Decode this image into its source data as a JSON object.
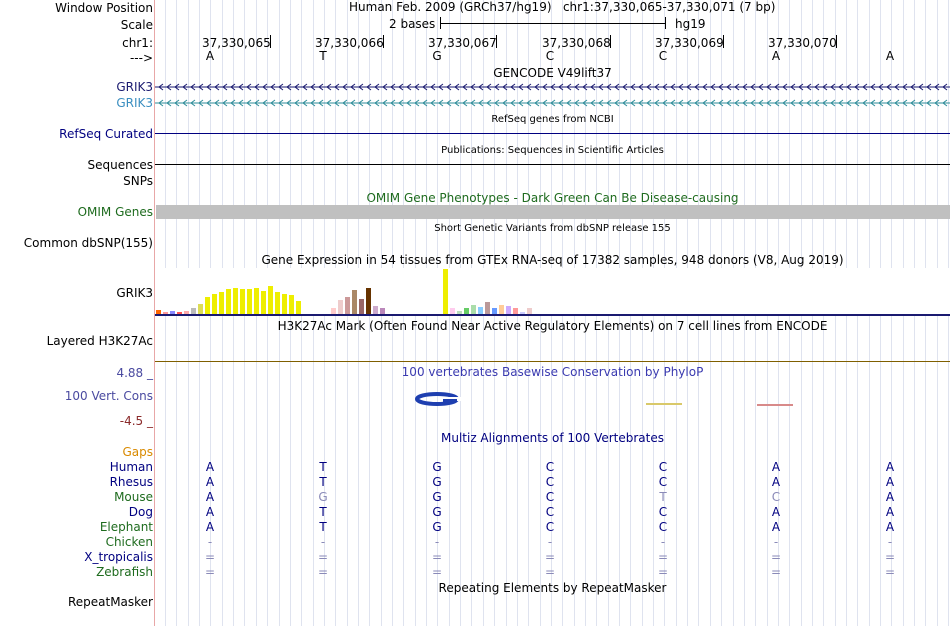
{
  "header": {
    "window_position_label": "Window Position",
    "window_position_value": "Human Feb. 2009 (GRCh37/hg19)   chr1:37,330,065-37,330,071 (7 bp)",
    "scale_label": "Scale",
    "scale_bases": "2 bases",
    "scale_assembly": "hg19",
    "chrom_label": "chr1:",
    "strand_label": "--->",
    "positions": [
      "37,330,065",
      "37,330,066",
      "37,330,067",
      "37,330,068",
      "37,330,069",
      "37,330,070"
    ],
    "bases": [
      "A",
      "T",
      "G",
      "C",
      "C",
      "A",
      "A"
    ]
  },
  "tracks": {
    "gencode_title": "GENCODE V49lift37",
    "grik3_1": "GRIK3",
    "grik3_2": "GRIK3",
    "refseq_label": "RefSeq Curated",
    "refseq_title": "RefSeq genes from NCBI",
    "sequences_label": "Sequences",
    "publications_title": "Publications: Sequences in Scientific Articles",
    "snps_label": "SNPs",
    "omim_title": "OMIM Gene Phenotypes - Dark Green Can Be Disease-causing",
    "omim_label": "OMIM Genes",
    "dbsnp_title": "Short Genetic Variants from dbSNP release 155",
    "dbsnp_label": "Common dbSNP(155)",
    "gtex_title": "Gene Expression in 54 tissues from GTEx RNA-seq of 17382 samples, 948 donors (V8, Aug 2019)",
    "gtex_label": "GRIK3",
    "h3k27_title": "H3K27Ac Mark (Often Found Near Active Regulatory Elements) on 7 cell lines from ENCODE",
    "h3k27_label": "Layered H3K27Ac",
    "cons_max": "4.88 _",
    "cons_title": "100 vertebrates Basewise Conservation by PhyloP",
    "cons_label": "100 Vert. Cons",
    "cons_min": "-4.5 _",
    "multiz_title": "Multiz Alignments of 100 Vertebrates",
    "gaps_label": "Gaps",
    "repeat_title": "Repeating Elements by RepeatMasker",
    "repeat_label": "RepeatMasker"
  },
  "colors": {
    "navy": "#000080",
    "teal": "#2d8c99",
    "green": "#1e6b1e",
    "grik3_1": "#1a1a70",
    "grik3_2": "#3a8ec0",
    "omim_bar": "#c0c0c0",
    "gaps": "#d98a00",
    "h3k27_line": "#7f5f00"
  },
  "alignment": [
    {
      "species": "Human",
      "color": "#000080",
      "bases": [
        "A",
        "T",
        "G",
        "C",
        "C",
        "A",
        "A"
      ],
      "faded": [
        false,
        false,
        false,
        false,
        false,
        false,
        false
      ]
    },
    {
      "species": "Rhesus",
      "color": "#000080",
      "bases": [
        "A",
        "T",
        "G",
        "C",
        "C",
        "A",
        "A"
      ],
      "faded": [
        false,
        false,
        false,
        false,
        false,
        false,
        false
      ]
    },
    {
      "species": "Mouse",
      "color": "#1e6b1e",
      "bases": [
        "A",
        "G",
        "G",
        "C",
        "T",
        "C",
        "A"
      ],
      "faded": [
        false,
        true,
        false,
        false,
        true,
        true,
        false
      ]
    },
    {
      "species": "Dog",
      "color": "#000080",
      "bases": [
        "A",
        "T",
        "G",
        "C",
        "C",
        "A",
        "A"
      ],
      "faded": [
        false,
        false,
        false,
        false,
        false,
        false,
        false
      ]
    },
    {
      "species": "Elephant",
      "color": "#1e6b1e",
      "bases": [
        "A",
        "T",
        "G",
        "C",
        "C",
        "A",
        "A"
      ],
      "faded": [
        false,
        false,
        false,
        false,
        false,
        false,
        false
      ]
    },
    {
      "species": "Chicken",
      "color": "#1e6b1e",
      "bases": [
        "-",
        "-",
        "-",
        "-",
        "-",
        "-",
        "-"
      ],
      "faded": [
        true,
        true,
        true,
        true,
        true,
        true,
        true
      ]
    },
    {
      "species": "X_tropicalis",
      "color": "#000080",
      "bases": [
        "=",
        "=",
        "=",
        "=",
        "=",
        "=",
        "="
      ],
      "faded": [
        true,
        true,
        true,
        true,
        true,
        true,
        true
      ]
    },
    {
      "species": "Zebrafish",
      "color": "#1e6b1e",
      "bases": [
        "=",
        "=",
        "=",
        "=",
        "=",
        "=",
        "="
      ],
      "faded": [
        true,
        true,
        true,
        true,
        true,
        true,
        true
      ]
    }
  ],
  "gtex": {
    "heights": [
      4,
      2,
      3,
      2,
      3,
      6,
      10,
      17,
      20,
      22,
      25,
      26,
      25,
      25,
      26,
      23,
      28,
      22,
      20,
      19,
      13,
      0,
      0,
      0,
      0,
      6,
      14,
      17,
      24,
      15,
      26,
      8,
      6,
      0,
      0,
      0,
      0,
      0,
      0,
      0,
      0,
      45,
      6,
      3,
      6,
      9,
      7,
      12,
      6,
      9,
      8,
      6,
      2,
      6
    ],
    "colors": [
      "#ff6600",
      "#ff9999",
      "#8888ff",
      "#ff5555",
      "#ffaaaa",
      "#bbbbbb",
      "#dddd55",
      "#eeee00",
      "#eeee00",
      "#eeee00",
      "#eeee00",
      "#eeee00",
      "#eeee00",
      "#eeee00",
      "#eeee00",
      "#eeee00",
      "#eeee00",
      "#eeee00",
      "#eeee00",
      "#eeee00",
      "#eeee00",
      "#00cccc",
      "#ffffff",
      "#ffffff",
      "#ffffff",
      "#ffcccc",
      "#eecccc",
      "#cc9999",
      "#aa8866",
      "#996666",
      "#663300",
      "#ccaacc",
      "#bb88bb",
      "#ffffff",
      "#ffffff",
      "#ffffff",
      "#ffffff",
      "#ffffff",
      "#ffffff",
      "#ffffff",
      "#ffffff",
      "#eeee00",
      "#ffccee",
      "#bbddbb",
      "#66cc66",
      "#aaddaa",
      "#88ccff",
      "#bb9999",
      "#6699ff",
      "#ffcc99",
      "#ccaaff",
      "#ff9999",
      "#ccccff",
      "#eecccc"
    ]
  }
}
